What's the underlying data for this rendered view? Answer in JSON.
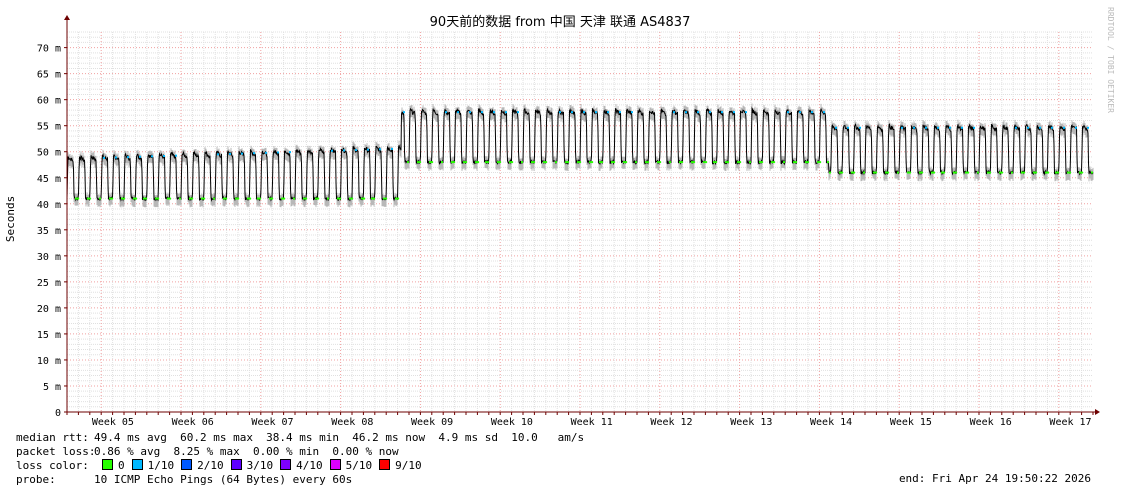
{
  "chart_data": {
    "type": "line",
    "title": "90天前的数据 from  中国 天津 联通 AS4837",
    "ylabel": "Seconds",
    "watermark": "RRDTOOL / TOBI OETIKER",
    "ylim": [
      0,
      73
    ],
    "y_ticks": [
      {
        "value": 0,
        "label": "0"
      },
      {
        "value": 5,
        "label": "5 m"
      },
      {
        "value": 10,
        "label": "10 m"
      },
      {
        "value": 15,
        "label": "15 m"
      },
      {
        "value": 20,
        "label": "20 m"
      },
      {
        "value": 25,
        "label": "25 m"
      },
      {
        "value": 30,
        "label": "30 m"
      },
      {
        "value": 35,
        "label": "35 m"
      },
      {
        "value": 40,
        "label": "40 m"
      },
      {
        "value": 45,
        "label": "45 m"
      },
      {
        "value": 50,
        "label": "50 m"
      },
      {
        "value": 55,
        "label": "55 m"
      },
      {
        "value": 60,
        "label": "60 m"
      },
      {
        "value": 65,
        "label": "65 m"
      },
      {
        "value": 70,
        "label": "70 m"
      }
    ],
    "x_categories": [
      "Week 05",
      "Week 06",
      "Week 07",
      "Week 08",
      "Week 09",
      "Week 10",
      "Week 11",
      "Week 12",
      "Week 13",
      "Week 14",
      "Week 15",
      "Week 16",
      "Week 17"
    ],
    "segments": [
      {
        "days": [
          0,
          29.3
        ],
        "base_ms": 41,
        "peak_ms": 49,
        "peak_end_ms": 51
      },
      {
        "days": [
          29.3,
          66.8
        ],
        "base_ms": 48,
        "peak_ms": 58,
        "peak_end_ms": 58
      },
      {
        "days": [
          66.8,
          90
        ],
        "base_ms": 46,
        "peak_ms": 55,
        "peak_end_ms": 55
      }
    ],
    "days_span": 90,
    "colors": {
      "median_line": "#000000",
      "smoke": "#b8b8b8",
      "loss_0": "#26ff00",
      "loss_1": "#00b8ff",
      "grid_minor": "#e0e0e0",
      "grid_major": "#f0a0a0",
      "axis": "#6e0000"
    }
  },
  "legend": {
    "median_rtt_label": "median rtt:",
    "median_rtt_values": "49.4 ms avg  60.2 ms max  38.4 ms min  46.2 ms now  4.9 ms sd  10.0   am/s",
    "packet_loss_label": "packet loss:",
    "packet_loss_values": "0.86 % avg  8.25 % max  0.00 % min  0.00 % now",
    "loss_color_label": "loss color:",
    "loss_colors": [
      {
        "label": "0",
        "color": "#26ff00"
      },
      {
        "label": "1/10",
        "color": "#00b8ff"
      },
      {
        "label": "2/10",
        "color": "#0059ff"
      },
      {
        "label": "3/10",
        "color": "#5e00ff"
      },
      {
        "label": "4/10",
        "color": "#7e00ff"
      },
      {
        "label": "5/10",
        "color": "#dd00ff"
      },
      {
        "label": "9/10",
        "color": "#ff0000"
      }
    ],
    "probe_label": "probe:",
    "probe_value": "10 ICMP Echo Pings (64 Bytes) every 60s",
    "end_text": "end: Fri Apr 24 19:50:22 2026"
  }
}
